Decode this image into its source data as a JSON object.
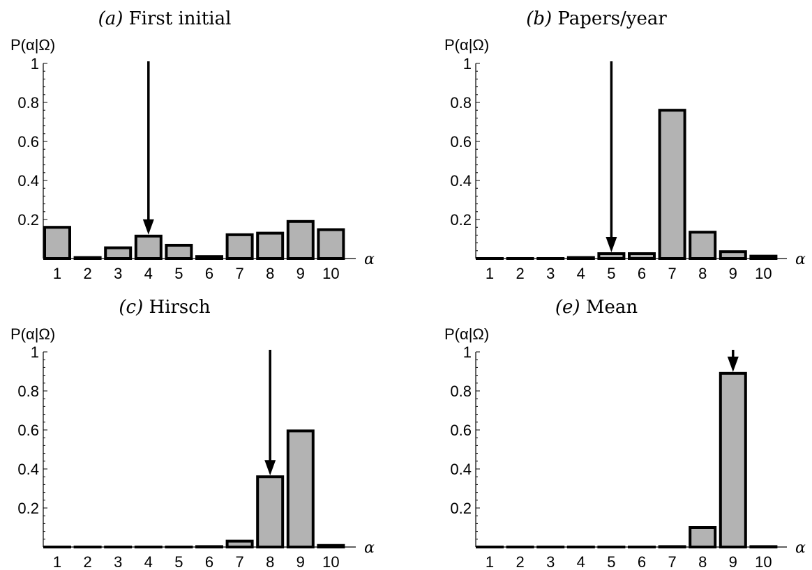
{
  "chart_data": [
    {
      "type": "bar",
      "panel_label": "(a)",
      "title": "First initial",
      "ylabel": "P(α|Ω)",
      "xlabel": "α",
      "categories": [
        "1",
        "2",
        "3",
        "4",
        "5",
        "6",
        "7",
        "8",
        "9",
        "10"
      ],
      "values": [
        0.16,
        0.005,
        0.055,
        0.115,
        0.068,
        0.01,
        0.122,
        0.13,
        0.19,
        0.148
      ],
      "ylim": [
        0,
        1
      ],
      "yticks": [
        "0.2",
        "0.4",
        "0.6",
        "0.8",
        "1"
      ],
      "arrow_category": "4",
      "bar_color": "#b3b3b3"
    },
    {
      "type": "bar",
      "panel_label": "(b)",
      "title": "Papers/year",
      "ylabel": "P(α|Ω)",
      "xlabel": "α",
      "categories": [
        "1",
        "2",
        "3",
        "4",
        "5",
        "6",
        "7",
        "8",
        "9",
        "10"
      ],
      "values": [
        0.0,
        0.0,
        0.0,
        0.005,
        0.025,
        0.025,
        0.76,
        0.135,
        0.035,
        0.012
      ],
      "ylim": [
        0,
        1
      ],
      "yticks": [
        "0.2",
        "0.4",
        "0.6",
        "0.8",
        "1"
      ],
      "arrow_category": "5",
      "bar_color": "#b3b3b3"
    },
    {
      "type": "bar",
      "panel_label": "(c)",
      "title": "Hirsch",
      "ylabel": "P(α|Ω)",
      "xlabel": "α",
      "categories": [
        "1",
        "2",
        "3",
        "4",
        "5",
        "6",
        "7",
        "8",
        "9",
        "10"
      ],
      "values": [
        0.0,
        0.0,
        0.0,
        0.0,
        0.0,
        0.002,
        0.03,
        0.36,
        0.595,
        0.008
      ],
      "ylim": [
        0,
        1
      ],
      "yticks": [
        "0.2",
        "0.4",
        "0.6",
        "0.8",
        "1"
      ],
      "arrow_category": "8",
      "bar_color": "#b3b3b3"
    },
    {
      "type": "bar",
      "panel_label": "(e)",
      "title": "Mean",
      "ylabel": "P(α|Ω)",
      "xlabel": "α",
      "categories": [
        "1",
        "2",
        "3",
        "4",
        "5",
        "6",
        "7",
        "8",
        "9",
        "10"
      ],
      "values": [
        0.0,
        0.0,
        0.0,
        0.0,
        0.0,
        0.0,
        0.002,
        0.1,
        0.89,
        0.002
      ],
      "ylim": [
        0,
        1
      ],
      "yticks": [
        "0.2",
        "0.4",
        "0.6",
        "0.8",
        "1"
      ],
      "arrow_category": "9",
      "bar_color": "#b3b3b3"
    }
  ]
}
